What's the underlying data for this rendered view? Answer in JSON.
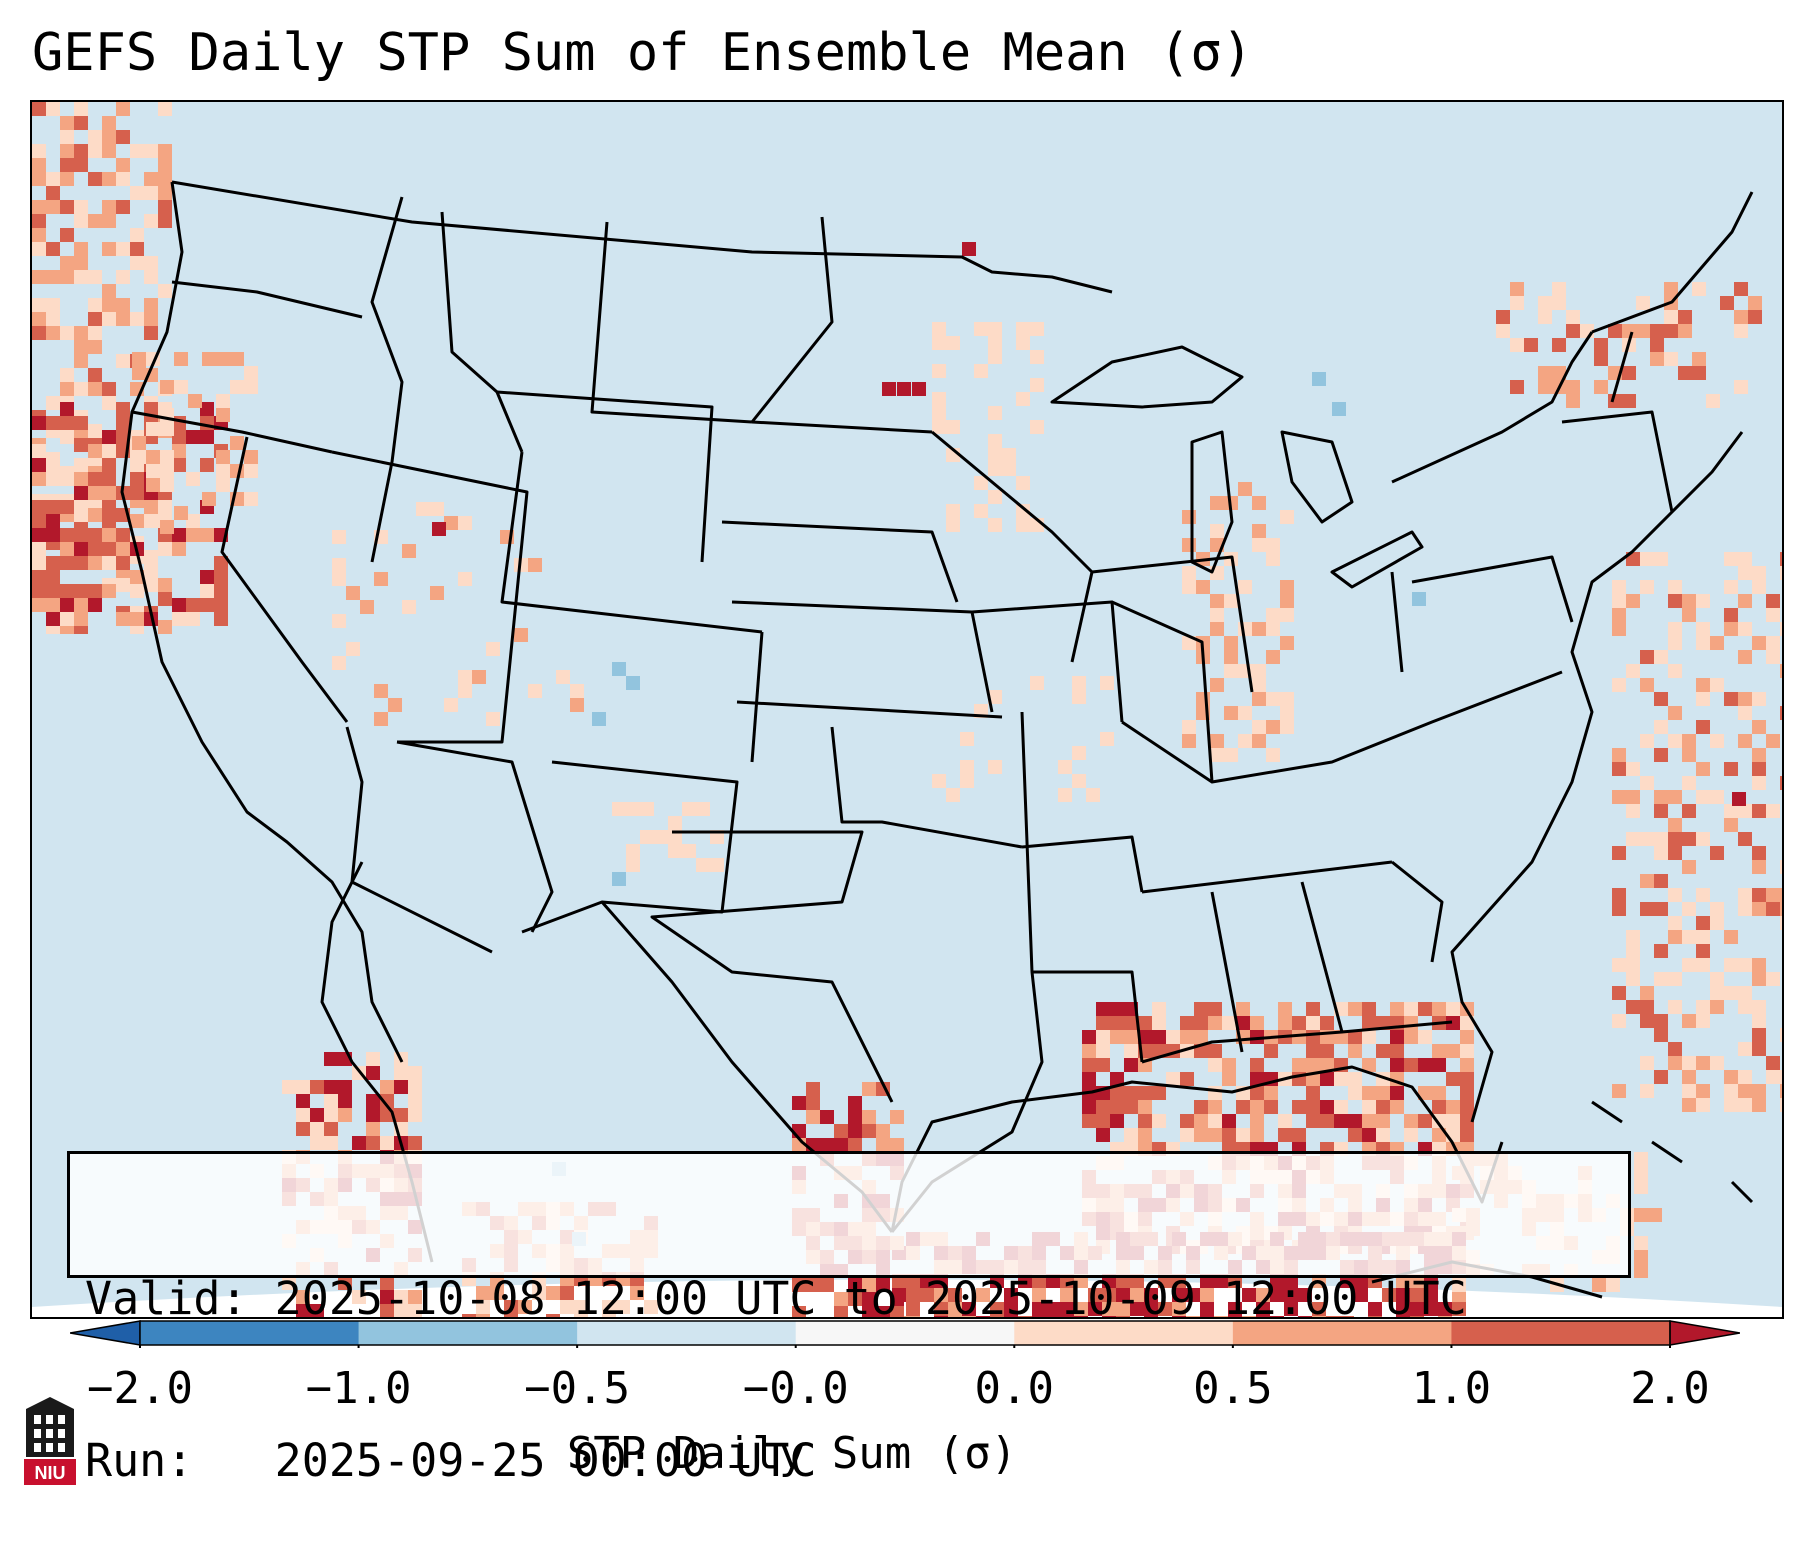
{
  "title": "GEFS Daily STP Sum of Ensemble Mean (σ)",
  "info": {
    "valid_line": "Valid: 2025-10-08 12:00 UTC to 2025-10-09 12:00 UTC",
    "run_line": "Run:   2025-09-25 00:00 UTC"
  },
  "colorbar": {
    "label": "STP Daily Sum (σ)",
    "tick_labels": [
      "−2.0",
      "−1.0",
      "−0.5",
      "−0.0",
      "0.0",
      "0.5",
      "1.0",
      "2.0"
    ],
    "bins": [
      {
        "range": "< -2.0",
        "color": "#1f5fa8"
      },
      {
        "range": "-2.0 to -1.0",
        "color": "#3d85c0"
      },
      {
        "range": "-1.0 to -0.5",
        "color": "#92c4de"
      },
      {
        "range": "-0.5 to -0.0",
        "color": "#d1e5f0"
      },
      {
        "range": "-0.0 to 0.0",
        "color": "#f7f7f7"
      },
      {
        "range": "0.0 to 0.5",
        "color": "#fddbc7"
      },
      {
        "range": "0.5 to 1.0",
        "color": "#f4a582"
      },
      {
        "range": "1.0 to 2.0",
        "color": "#d6604d"
      },
      {
        "range": "> 2.0",
        "color": "#b2182b"
      }
    ]
  },
  "map": {
    "background_color": "#d1e5f0",
    "region": "Contiguous United States"
  },
  "logo": {
    "text": "NIU",
    "icon": "niu-tower-logo-icon",
    "color": "#c8102e"
  }
}
